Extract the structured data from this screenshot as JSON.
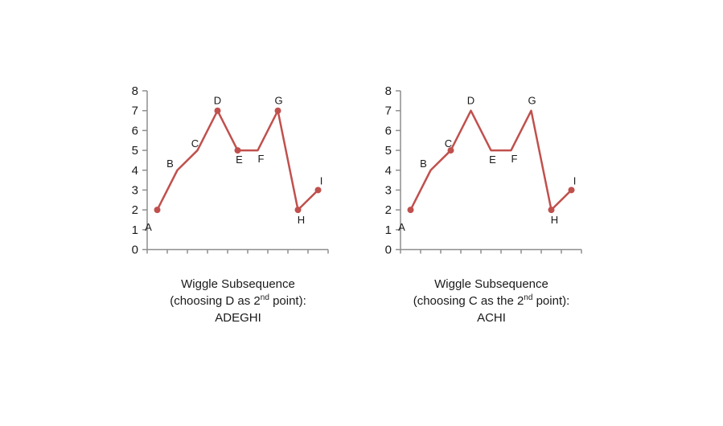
{
  "page": {
    "background": "#ffffff"
  },
  "chart_data": [
    {
      "type": "line",
      "categories": [
        "A",
        "B",
        "C",
        "D",
        "E",
        "F",
        "G",
        "H",
        "I"
      ],
      "values": [
        2,
        4,
        5,
        7,
        5,
        5,
        7,
        2,
        3
      ],
      "marker_points": [
        "A",
        "D",
        "E",
        "G",
        "H",
        "I"
      ],
      "subsequence": "ADEGHI",
      "ylim": [
        0,
        8
      ],
      "yticks": [
        0,
        1,
        2,
        3,
        4,
        5,
        6,
        7,
        8
      ],
      "xlabel": "",
      "ylabel": "",
      "grid": false,
      "legend": false,
      "line_color": "#C0504D",
      "marker_color": "#C0504D",
      "axis_color": "#8E8E8E",
      "text_color": "#1a1a1a",
      "label_offsets": {
        "A": [
          -11,
          26
        ],
        "B": [
          -9,
          -4
        ],
        "C": [
          -3,
          -4
        ],
        "D": [
          0,
          -8
        ],
        "E": [
          2,
          16
        ],
        "F": [
          4,
          15
        ],
        "G": [
          1,
          -8
        ],
        "H": [
          4,
          17
        ],
        "I": [
          4,
          -7
        ]
      },
      "caption": {
        "line1": "Wiggle Subsequence",
        "line2_prefix": "(choosing D as 2",
        "line2_sup": "nd",
        "line2_suffix": " point):",
        "line3": "ADEGHI"
      }
    },
    {
      "type": "line",
      "categories": [
        "A",
        "B",
        "C",
        "D",
        "E",
        "F",
        "G",
        "H",
        "I"
      ],
      "values": [
        2,
        4,
        5,
        7,
        5,
        5,
        7,
        2,
        3
      ],
      "marker_points": [
        "A",
        "C",
        "H",
        "I"
      ],
      "subsequence": "ACHI",
      "ylim": [
        0,
        8
      ],
      "yticks": [
        0,
        1,
        2,
        3,
        4,
        5,
        6,
        7,
        8
      ],
      "xlabel": "",
      "ylabel": "",
      "grid": false,
      "legend": false,
      "line_color": "#C0504D",
      "marker_color": "#C0504D",
      "axis_color": "#8E8E8E",
      "text_color": "#1a1a1a",
      "label_offsets": {
        "A": [
          -11,
          26
        ],
        "B": [
          -9,
          -4
        ],
        "C": [
          -3,
          -4
        ],
        "D": [
          0,
          -8
        ],
        "E": [
          2,
          16
        ],
        "F": [
          4,
          15
        ],
        "G": [
          1,
          -8
        ],
        "H": [
          4,
          17
        ],
        "I": [
          4,
          -7
        ]
      },
      "caption": {
        "line1": "Wiggle Subsequence",
        "line2_prefix": "(choosing C as the 2",
        "line2_sup": "nd",
        "line2_suffix": " point):",
        "line3": "ACHI"
      }
    }
  ]
}
